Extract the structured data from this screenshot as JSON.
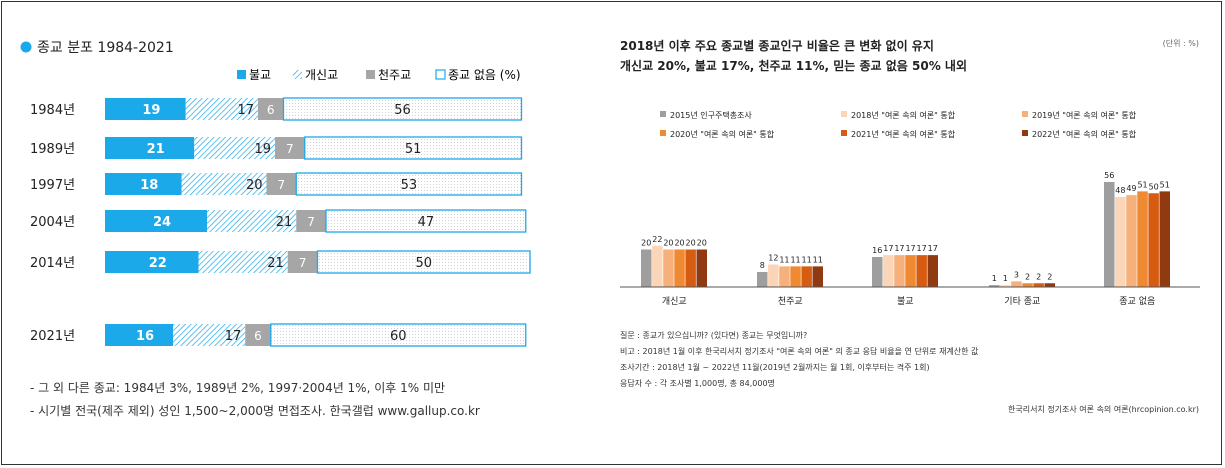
{
  "chart_data": [
    {
      "type": "bar",
      "title": "종교 분포 1984-2021",
      "legend": [
        "불교",
        "개신교",
        "천주교",
        "종교 없음 (%)"
      ],
      "categories": [
        "1984년",
        "1989년",
        "1997년",
        "2004년",
        "2014년",
        "2021년"
      ],
      "series": [
        {
          "name": "불교",
          "values": [
            19,
            21,
            18,
            24,
            22,
            16
          ]
        },
        {
          "name": "개신교",
          "values": [
            17,
            19,
            20,
            21,
            21,
            17
          ]
        },
        {
          "name": "천주교",
          "values": [
            6,
            7,
            7,
            7,
            7,
            6
          ]
        },
        {
          "name": "종교 없음 (%)",
          "values": [
            56,
            51,
            53,
            47,
            50,
            60
          ]
        }
      ],
      "colors": {
        "buddhism": "#1ba9ea",
        "protestant": "#1ba9ea",
        "catholic": "#a6a6a6",
        "none_border": "#1ba9ea"
      },
      "footnotes": [
        "- 그 외 다른 종교: 1984년 3%, 1989년 2%, 1997·2004년 1%, 이후 1% 미만",
        "- 시기별 전국(제주 제외) 성인 1,500~2,000명 면접조사. 한국갤럽 www.gallup.co.kr"
      ]
    },
    {
      "type": "bar",
      "title_line1": "2018년 이후 주요 종교별 종교인구 비율은 큰 변화 없이 유지",
      "title_line2": "개신교 20%, 불교 17%, 천주교 11%, 믿는 종교 없음 50% 내외",
      "unit": "(단위 : %)",
      "categories": [
        "개신교",
        "천주교",
        "불교",
        "기타 종교",
        "종교 없음"
      ],
      "series": [
        {
          "name": "2015년 인구주택총조사",
          "values": [
            20,
            8,
            16,
            1,
            56
          ],
          "color": "#9e9e9e"
        },
        {
          "name": "2018년 \"여론 속의 여론\" 통합",
          "values": [
            22,
            12,
            17,
            1,
            48
          ],
          "color": "#fbd5b8"
        },
        {
          "name": "2019년 \"여론 속의 여론\" 통합",
          "values": [
            20,
            11,
            17,
            3,
            49
          ],
          "color": "#f5b07c"
        },
        {
          "name": "2020년 \"여론 속의 여론\" 통합",
          "values": [
            20,
            11,
            17,
            2,
            51
          ],
          "color": "#ef8a33"
        },
        {
          "name": "2021년 \"여론 속의 여론\" 통합",
          "values": [
            20,
            11,
            17,
            2,
            50
          ],
          "color": "#d65c12"
        },
        {
          "name": "2022년 \"여론 속의 여론\" 통합",
          "values": [
            20,
            11,
            17,
            2,
            51
          ],
          "color": "#8f3a10"
        }
      ],
      "ylim": [
        0,
        56
      ],
      "notes": [
        "질문 : 종교가 있으십니까? (있다면) 종교는 무엇입니까?",
        "비고 : 2018년 1월 이후 한국리서치 정기조사 \"여론 속의 여론\" 의 종교 응답 비율을 연 단위로 재계산한 값",
        "조사기간 : 2018년 1월 ~ 2022년 11월(2019년 2월까지는 월 1회, 이후부터는 격주 1회)",
        "응답자 수 : 각 조사별 1,000명, 총 84,000명"
      ],
      "source": "한국리서치 정기조사 여론 속의 여론(hrcopinion.co.kr)"
    }
  ]
}
